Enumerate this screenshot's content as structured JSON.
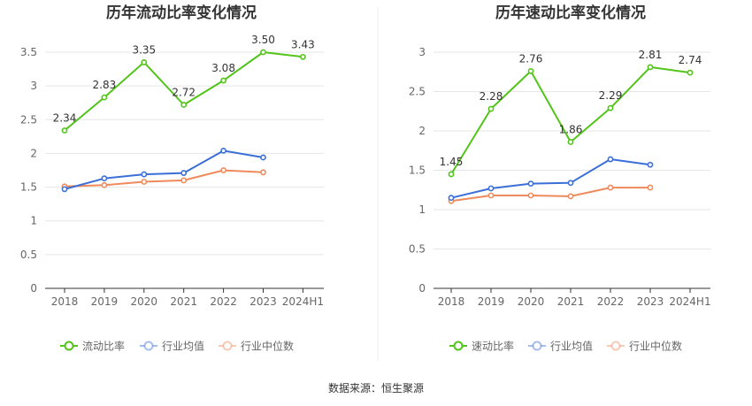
{
  "source_text": "数据来源：恒生聚源",
  "colors": {
    "primary": "#52c41a",
    "industry_avg": "#3b6fd8",
    "industry_median": "#ef8a5b",
    "grid": "#e6e6e6",
    "axis": "#333333",
    "divider": "#eeeeee"
  },
  "chart_data": [
    {
      "type": "line",
      "title": "历年流动比率变化情况",
      "categories": [
        "2018",
        "2019",
        "2020",
        "2021",
        "2022",
        "2023",
        "2024H1"
      ],
      "ylim": [
        0,
        3.5
      ],
      "yticks": [
        "0",
        "0.5",
        "1",
        "1.5",
        "2",
        "2.5",
        "3",
        "3.5"
      ],
      "grid": true,
      "legend_position": "bottom",
      "series": [
        {
          "name": "流动比率",
          "values": [
            2.34,
            2.83,
            3.35,
            2.72,
            3.08,
            3.5,
            3.43
          ],
          "labels": [
            "2.34",
            "2.83",
            "3.35",
            "2.72",
            "3.08",
            "3.50",
            "3.43"
          ]
        },
        {
          "name": "行业均值",
          "values": [
            1.47,
            1.63,
            1.69,
            1.71,
            2.04,
            1.94,
            null
          ]
        },
        {
          "name": "行业中位数",
          "values": [
            1.51,
            1.53,
            1.58,
            1.6,
            1.75,
            1.72,
            null
          ]
        }
      ]
    },
    {
      "type": "line",
      "title": "历年速动比率变化情况",
      "categories": [
        "2018",
        "2019",
        "2020",
        "2021",
        "2022",
        "2023",
        "2024H1"
      ],
      "ylim": [
        0,
        3
      ],
      "yticks": [
        "0",
        "0.5",
        "1",
        "1.5",
        "2",
        "2.5",
        "3"
      ],
      "grid": true,
      "legend_position": "bottom",
      "series": [
        {
          "name": "速动比率",
          "values": [
            1.45,
            2.28,
            2.76,
            1.86,
            2.29,
            2.81,
            2.74
          ],
          "labels": [
            "1.45",
            "2.28",
            "2.76",
            "1.86",
            "2.29",
            "2.81",
            "2.74"
          ]
        },
        {
          "name": "行业均值",
          "values": [
            1.15,
            1.27,
            1.33,
            1.34,
            1.64,
            1.57,
            null
          ]
        },
        {
          "name": "行业中位数",
          "values": [
            1.11,
            1.18,
            1.18,
            1.17,
            1.28,
            1.28,
            null
          ]
        }
      ]
    }
  ]
}
